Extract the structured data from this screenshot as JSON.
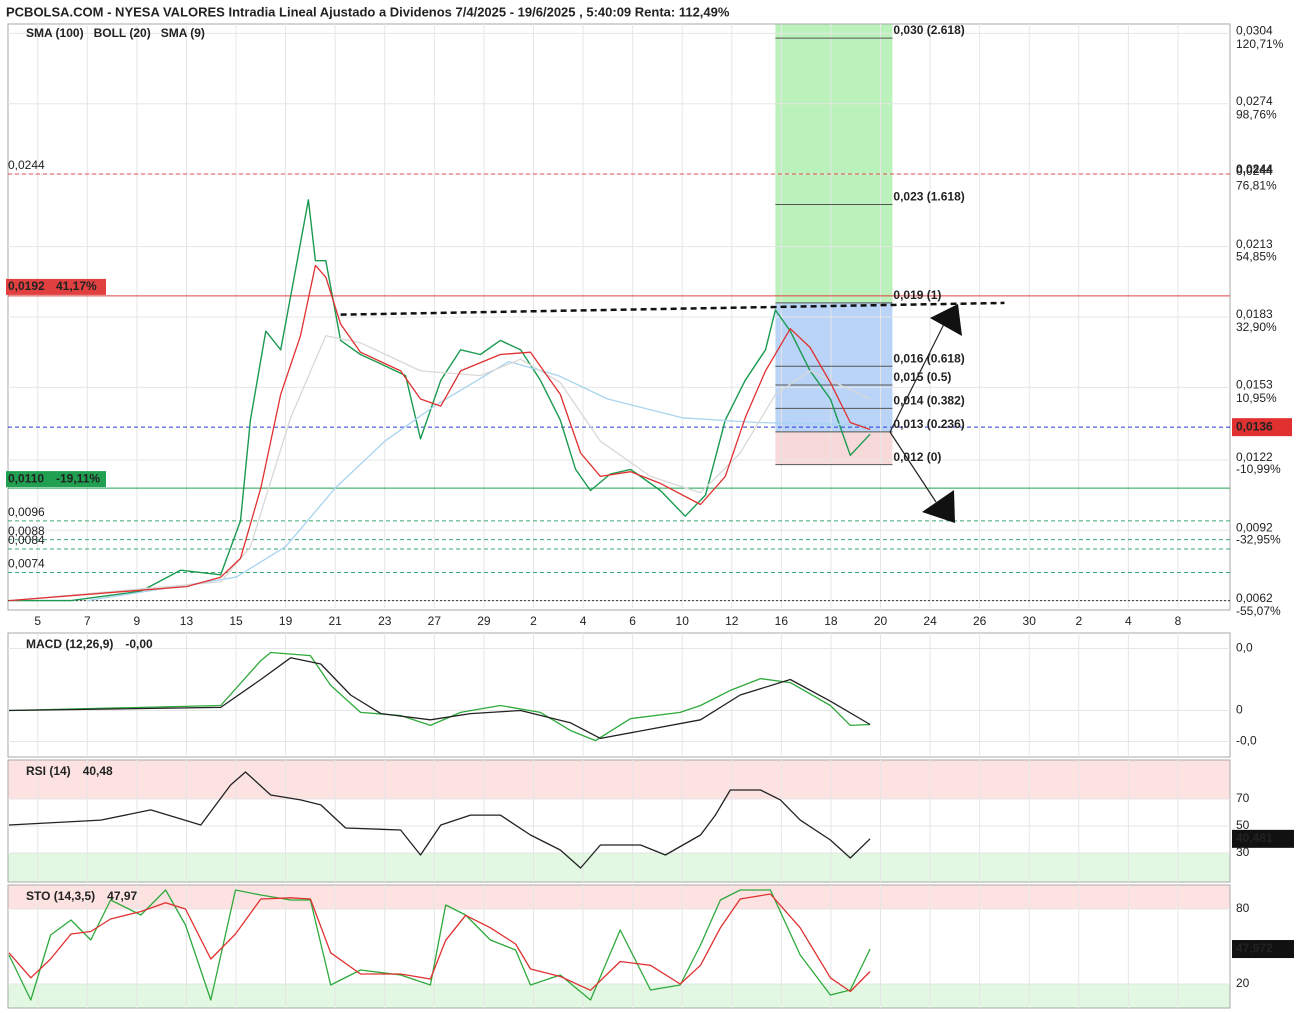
{
  "chart_data": [
    {
      "type": "line",
      "title": "PCBOLSA.COM - NYESA VALORES Intradia Lineal Ajustado a Dividenos 7/4/2025 - 19/6/2025 , 5:40:09 Renta: 112,49%",
      "xlim": [
        -0.6,
        24.05
      ],
      "xticks": [
        {
          "value": 0,
          "label": "5"
        },
        {
          "value": 1,
          "label": "7"
        },
        {
          "value": 2,
          "label": "9"
        },
        {
          "value": 3,
          "label": "13"
        },
        {
          "value": 4,
          "label": "15"
        },
        {
          "value": 5,
          "label": "19"
        },
        {
          "value": 6,
          "label": "21"
        },
        {
          "value": 7,
          "label": "23"
        },
        {
          "value": 8,
          "label": "27"
        },
        {
          "value": 9,
          "label": "29"
        },
        {
          "value": 10,
          "label": "2"
        },
        {
          "value": 11,
          "label": "4"
        },
        {
          "value": 12,
          "label": "6"
        },
        {
          "value": 13,
          "label": "10"
        },
        {
          "value": 14,
          "label": "12"
        },
        {
          "value": 15,
          "label": "16"
        },
        {
          "value": 16,
          "label": "18"
        },
        {
          "value": 17,
          "label": "20"
        },
        {
          "value": 18,
          "label": "24"
        },
        {
          "value": 19,
          "label": "26"
        },
        {
          "value": 20,
          "label": "30"
        },
        {
          "value": 21,
          "label": "2"
        },
        {
          "value": 22,
          "label": "4"
        },
        {
          "value": 23,
          "label": "8"
        }
      ],
      "ylim": [
        0.0058,
        0.0308
      ],
      "yticks": [
        {
          "value": 0.0304,
          "label": "0,0304"
        },
        {
          "value": 0.0274,
          "label": "0,0274"
        },
        {
          "value": 0.0244,
          "label": "0,0244"
        },
        {
          "value": 0.0213,
          "label": "0,0213"
        },
        {
          "value": 0.0183,
          "label": "0,0183"
        },
        {
          "value": 0.0153,
          "label": "0,0153"
        },
        {
          "value": 0.0122,
          "label": "0,0122"
        },
        {
          "value": 0.0092,
          "label": "0,0092"
        },
        {
          "value": 0.0062,
          "label": "0,0062"
        }
      ],
      "y2lim": [
        -57.9,
        123.7
      ],
      "y2ticks": [
        {
          "value": 120.71,
          "label": "120,71%"
        },
        {
          "value": 98.76,
          "label": "98,76%"
        },
        {
          "value": 76.81,
          "label": "76,81%"
        },
        {
          "value": 54.85,
          "label": "54,85%"
        },
        {
          "value": 32.9,
          "label": "32,90%"
        },
        {
          "value": 10.95,
          "label": "10,95%"
        },
        {
          "value": -10.99,
          "label": "-10,99%"
        },
        {
          "value": -32.95,
          "label": "-32,95%"
        },
        {
          "value": -55.07,
          "label": "-55,07%"
        }
      ],
      "grid": true,
      "series": [
        {
          "color": "#1a9a50",
          "x": [
            -0.58,
            0.67,
            2.08,
            2.88,
            3.69,
            4.09,
            4.29,
            4.6,
            4.9,
            5.2,
            5.46,
            5.6,
            5.81,
            6.11,
            6.51,
            6.92,
            7.42,
            7.72,
            8.13,
            8.53,
            8.93,
            9.33,
            9.74,
            10.14,
            10.54,
            10.85,
            11.15,
            11.55,
            11.96,
            12.56,
            13.06,
            13.47,
            13.87,
            14.27,
            14.68,
            14.88,
            15.18,
            15.58,
            15.99,
            16.39,
            16.79
          ],
          "values": [
            0.0062,
            0.0062,
            0.0066,
            0.0075,
            0.0073,
            0.0096,
            0.0139,
            0.0177,
            0.0169,
            0.0203,
            0.0233,
            0.0207,
            0.0207,
            0.0173,
            0.0167,
            0.0163,
            0.0158,
            0.0131,
            0.0156,
            0.0169,
            0.0167,
            0.0173,
            0.0169,
            0.0156,
            0.0139,
            0.0118,
            0.0109,
            0.0116,
            0.0118,
            0.0109,
            0.0098,
            0.0107,
            0.0139,
            0.0156,
            0.0169,
            0.0186,
            0.0177,
            0.016,
            0.0148,
            0.0124,
            0.0133
          ]
        },
        {
          "name": "SMA (100)",
          "color": "#a8d4f0",
          "x": [
            1,
            4,
            5,
            6,
            7,
            8,
            9.5,
            10.5,
            11.5,
            13,
            14.5,
            16.79
          ],
          "values": [
            0.0062,
            0.0072,
            0.0085,
            0.011,
            0.013,
            0.0145,
            0.0164,
            0.0158,
            0.0148,
            0.014,
            0.0138,
            0.0137
          ]
        },
        {
          "name": "BOLL (20)",
          "color": "#d8d8d8",
          "x": [
            -0.58,
            3.69,
            4.29,
            5.1,
            5.81,
            6.51,
            7.72,
            8.93,
            9.74,
            10.54,
            11.35,
            12.36,
            13.37,
            14.17,
            14.88,
            15.58,
            16.79
          ],
          "values": [
            0.0062,
            0.007,
            0.0085,
            0.014,
            0.0175,
            0.0172,
            0.016,
            0.0158,
            0.0165,
            0.0155,
            0.013,
            0.0115,
            0.0108,
            0.0125,
            0.015,
            0.016,
            0.0148
          ]
        },
        {
          "name": "SMA (9)",
          "color": "#e03030",
          "x": [
            -0.58,
            3.0,
            3.69,
            4.09,
            4.5,
            4.9,
            5.3,
            5.6,
            5.81,
            6.11,
            6.51,
            7.32,
            7.72,
            8.13,
            8.53,
            9.33,
            9.94,
            10.54,
            10.95,
            11.35,
            11.96,
            12.56,
            13.37,
            13.87,
            14.27,
            14.68,
            15.18,
            15.58,
            15.99,
            16.39,
            16.79
          ],
          "values": [
            0.0062,
            0.0068,
            0.0072,
            0.008,
            0.011,
            0.015,
            0.0175,
            0.0205,
            0.02,
            0.018,
            0.0168,
            0.016,
            0.0148,
            0.0145,
            0.016,
            0.0167,
            0.0168,
            0.015,
            0.0125,
            0.0115,
            0.0117,
            0.0112,
            0.0103,
            0.0115,
            0.014,
            0.016,
            0.0178,
            0.017,
            0.0155,
            0.0138,
            0.0135
          ]
        }
      ],
      "levels": [
        {
          "value": 0.0244,
          "label": "0,0244",
          "color": "#e05050",
          "style": "dashed",
          "side": "both"
        },
        {
          "value": 0.0192,
          "label": "0,0192",
          "pct": {
            "value": 41.17,
            "label": "41,17%"
          },
          "color": "#e04040",
          "style": "solid",
          "side": "box"
        },
        {
          "value": 0.0136,
          "label": "0,0136",
          "color": "#2a3ad8",
          "style": "dashed",
          "side": "right"
        },
        {
          "value": 0.011,
          "label": "0,0110",
          "pct": {
            "value": -19.11,
            "label": "-19,11%"
          },
          "color": "#20a050",
          "style": "solid",
          "side": "box"
        },
        {
          "value": 0.0096,
          "label": "0,0096",
          "color": "#3aa870",
          "style": "dashed",
          "side": "left"
        },
        {
          "value": 0.0088,
          "label": "0,0088",
          "color": "#3aa870",
          "style": "dashed",
          "side": "left"
        },
        {
          "value": 0.0084,
          "label": "0,0084",
          "color": "#3aa870",
          "style": "dashed",
          "side": "left"
        },
        {
          "value": 0.0074,
          "label": "0,0074",
          "color": "#3aa870",
          "style": "dashed",
          "side": "left"
        },
        {
          "value": 0.0062,
          "color": "#333333",
          "style": "dotted"
        }
      ],
      "fib": {
        "x": [
          14.88,
          17.24
        ],
        "levels": [
          {
            "value": 0.0302,
            "label": "0,030 (2.618)",
            "color": "#3cb850"
          },
          {
            "value": 0.0231,
            "label": "0,023 (1.618)",
            "color": "#3cb850"
          },
          {
            "value": 0.0189,
            "label": "0,019 (1)",
            "color": "#3cb850"
          },
          {
            "value": 0.0162,
            "label": "0,016 (0.618)",
            "color": "#3a78d8"
          },
          {
            "value": 0.0154,
            "label": "0,015 (0.5)",
            "color": "#3a78d8"
          },
          {
            "value": 0.0144,
            "label": "0,014 (0.382)",
            "color": "#f09090"
          },
          {
            "value": 0.0134,
            "label": "0,013 (0.236)",
            "color": "#f09090"
          },
          {
            "value": 0.012,
            "label": "0,012 (0)",
            "color": "#f09090"
          }
        ]
      },
      "trendline": {
        "x": [
          6.11,
          19.5
        ],
        "values": [
          0.0184,
          0.0189
        ]
      }
    },
    {
      "type": "line",
      "title": "MACD (12,26,9)",
      "header_value": "-0,00",
      "ylim": [
        -0.0015,
        0.0025
      ],
      "yticks": [
        {
          "value": 0.002,
          "label": "0,0"
        },
        0,
        {
          "value": -0.001,
          "label": "-0,0"
        }
      ],
      "tick_colors": [
        "#d03030",
        "#333333",
        "#20a050"
      ],
      "series": [
        {
          "color": "#2eaa3c",
          "x": [
            -0.58,
            3.69,
            4.5,
            4.7,
            5.5,
            5.91,
            6.51,
            7.32,
            7.92,
            8.53,
            9.33,
            10.14,
            10.75,
            11.25,
            11.96,
            12.96,
            13.37,
            13.97,
            14.58,
            15.18,
            15.99,
            16.39,
            16.79
          ],
          "values": [
            0,
            0.00016,
            0.00161,
            0.00187,
            0.00177,
            0.00081,
            -6e-05,
            -0.00016,
            -0.00048,
            -6e-05,
            0.00016,
            -6e-05,
            -0.00065,
            -0.00097,
            -0.00026,
            -6e-05,
            0.00016,
            0.00065,
            0.00103,
            0.0009,
            0.00016,
            -0.00048,
            -0.00045
          ]
        },
        {
          "color": "#222222",
          "x": [
            -0.58,
            3.69,
            4.5,
            5.1,
            5.71,
            6.31,
            6.92,
            7.92,
            8.73,
            9.74,
            10.75,
            11.35,
            12.36,
            13.37,
            14.17,
            15.18,
            15.99,
            16.79
          ],
          "values": [
            0,
            0.0001,
            0.001,
            0.0017,
            0.0015,
            0.0005,
            -0.0001,
            -0.0003,
            -0.0001,
            0,
            -0.0004,
            -0.0009,
            -0.0006,
            -0.0003,
            0.0005,
            0.001,
            0.0003,
            -0.00045
          ]
        }
      ]
    },
    {
      "type": "line",
      "title": "RSI (14)",
      "header_value": "40,48",
      "ylim": [
        8.5,
        98.9
      ],
      "yticks": [
        70,
        50,
        30
      ],
      "tick_colors": [
        "#d03030",
        "#333333",
        "#20a050"
      ],
      "bands": [
        {
          "from": 70,
          "to": 98.9,
          "color": "#fde2e2"
        },
        {
          "from": 8.5,
          "to": 30,
          "color": "#e2f8e2"
        }
      ],
      "current": {
        "value": 40.481,
        "label": "40,481"
      },
      "series": [
        {
          "color": "#222222",
          "x": [
            -0.58,
            1.27,
            2.28,
            3.29,
            3.89,
            4.19,
            4.7,
            5.3,
            5.71,
            6.21,
            7.32,
            7.72,
            8.13,
            8.73,
            9.33,
            9.94,
            10.54,
            10.95,
            11.35,
            12.16,
            12.66,
            13.37,
            13.67,
            13.97,
            14.58,
            14.98,
            15.38,
            15.99,
            16.39,
            16.79
          ],
          "values": [
            50.7,
            54.4,
            61.9,
            50.7,
            80.4,
            90,
            73,
            69.3,
            65.6,
            48.5,
            47,
            28.5,
            50.7,
            58.1,
            58.1,
            43.3,
            32.2,
            18.9,
            35.9,
            35.9,
            28.5,
            43.3,
            58.1,
            76.7,
            76.7,
            69.3,
            54.4,
            39.6,
            26.3,
            40.481
          ]
        }
      ]
    },
    {
      "type": "line",
      "title": "STO (14,3,5)",
      "header_value": "47,97",
      "ylim": [
        0.8,
        99.2
      ],
      "yticks": [
        80,
        20
      ],
      "tick_colors": [
        "#d03030",
        "#20a050"
      ],
      "bands": [
        {
          "from": 80,
          "to": 99.2,
          "color": "#fde2e2"
        },
        {
          "from": 0.8,
          "to": 20,
          "color": "#e2f8e2"
        }
      ],
      "current": {
        "value": 47.972,
        "label": "47,972"
      },
      "series": [
        {
          "color": "#2eaa3c",
          "x": [
            -0.58,
            -0.14,
            0.26,
            0.67,
            1.07,
            1.47,
            2.08,
            2.58,
            2.98,
            3.49,
            3.99,
            4.5,
            5.1,
            5.5,
            5.91,
            6.51,
            7.32,
            7.92,
            8.23,
            8.63,
            9.13,
            9.64,
            9.94,
            10.54,
            11.15,
            11.75,
            12.36,
            12.96,
            13.37,
            13.77,
            14.17,
            14.78,
            15.38,
            15.99,
            16.39,
            16.79
          ],
          "values": [
            43.2,
            7.2,
            59.2,
            71.2,
            55.2,
            87.2,
            75.2,
            95.2,
            67.2,
            7.2,
            95.2,
            91.2,
            87.2,
            87.2,
            19.2,
            31.2,
            27.2,
            19.2,
            83.2,
            75.2,
            55.2,
            47.2,
            19.2,
            27.2,
            7.2,
            63.2,
            15.2,
            19.2,
            51.2,
            87.2,
            95.2,
            95.2,
            43.2,
            11.2,
            15.2,
            47.972
          ]
        },
        {
          "color": "#e03030",
          "x": [
            -0.58,
            -0.14,
            0.26,
            0.67,
            1.07,
            1.47,
            2.08,
            2.58,
            2.98,
            3.49,
            3.99,
            4.5,
            5.1,
            5.5,
            5.91,
            6.51,
            7.32,
            7.92,
            8.23,
            8.63,
            9.13,
            9.64,
            9.94,
            10.54,
            11.15,
            11.75,
            12.36,
            12.96,
            13.37,
            13.77,
            14.17,
            14.78,
            15.38,
            15.99,
            16.39,
            16.79
          ],
          "values": [
            45,
            25,
            40,
            60,
            62,
            72,
            78,
            85,
            80,
            40,
            60,
            88,
            89,
            88,
            45,
            28,
            28,
            24,
            55,
            75,
            65,
            52,
            32,
            26,
            15,
            38,
            35,
            20,
            35,
            65,
            88,
            92,
            65,
            25,
            14,
            30
          ]
        }
      ]
    }
  ]
}
